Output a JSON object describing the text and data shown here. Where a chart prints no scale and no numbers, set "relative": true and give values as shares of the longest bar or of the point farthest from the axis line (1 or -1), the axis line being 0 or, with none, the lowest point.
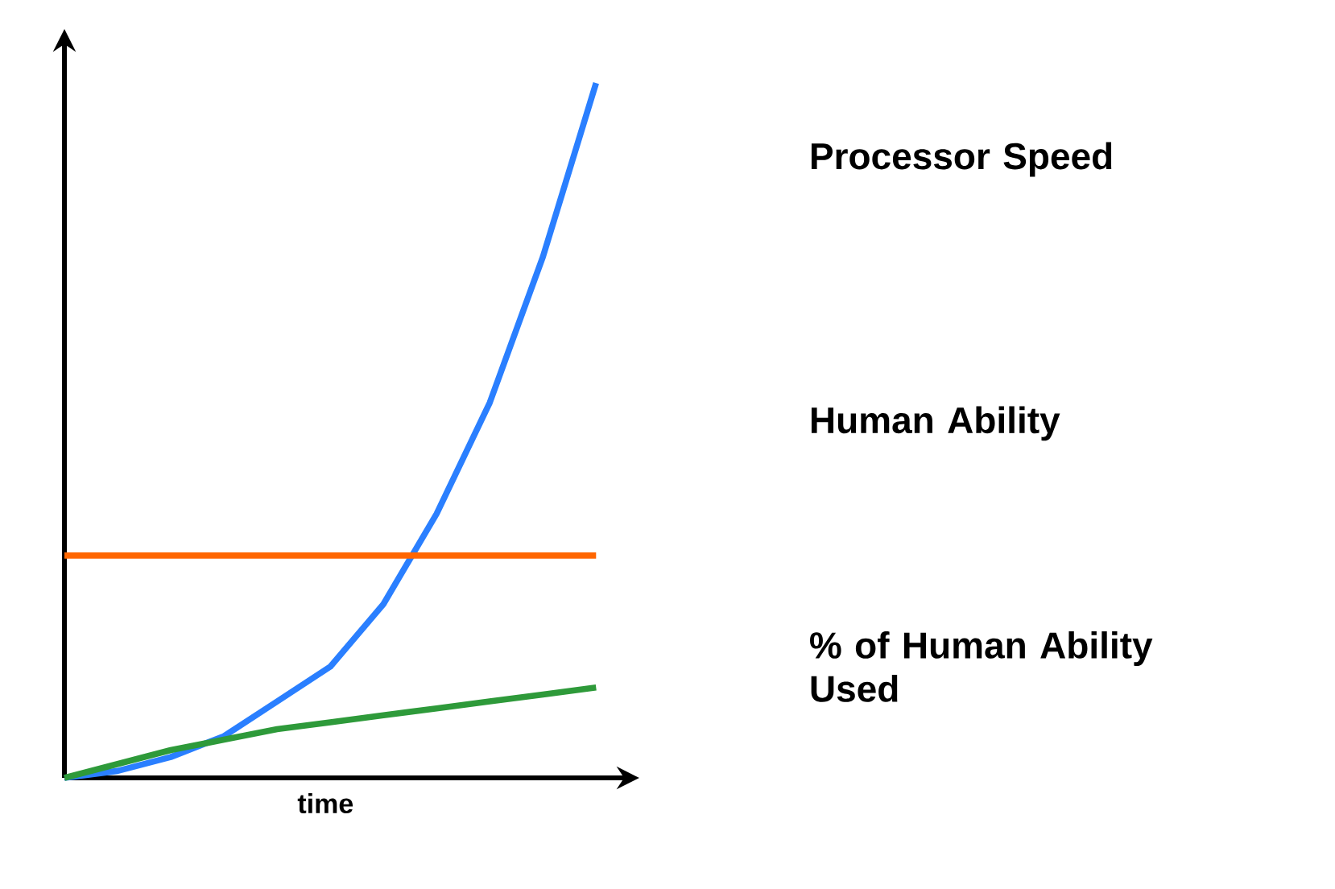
{
  "chart_data": {
    "type": "line",
    "relative": true,
    "xlabel": "time",
    "categories": [
      null,
      null,
      null,
      null,
      null,
      null,
      null,
      null,
      null,
      null,
      null
    ],
    "series": [
      {
        "name": "Processor Speed",
        "color": "#2a7fff",
        "values": [
          0,
          0.01,
          0.03,
          0.06,
          0.11,
          0.16,
          0.25,
          0.38,
          0.54,
          0.75,
          1.0
        ]
      },
      {
        "name": "Human Ability",
        "color": "#ff6600",
        "values": [
          0.32,
          0.32,
          0.32,
          0.32,
          0.32,
          0.32,
          0.32,
          0.32,
          0.32,
          0.32,
          0.32
        ]
      },
      {
        "name": "% of Human Ability Used",
        "color": "#2e9a3a",
        "values": [
          0,
          0.02,
          0.04,
          0.055,
          0.07,
          0.08,
          0.09,
          0.1,
          0.11,
          0.12,
          0.13
        ]
      }
    ]
  }
}
